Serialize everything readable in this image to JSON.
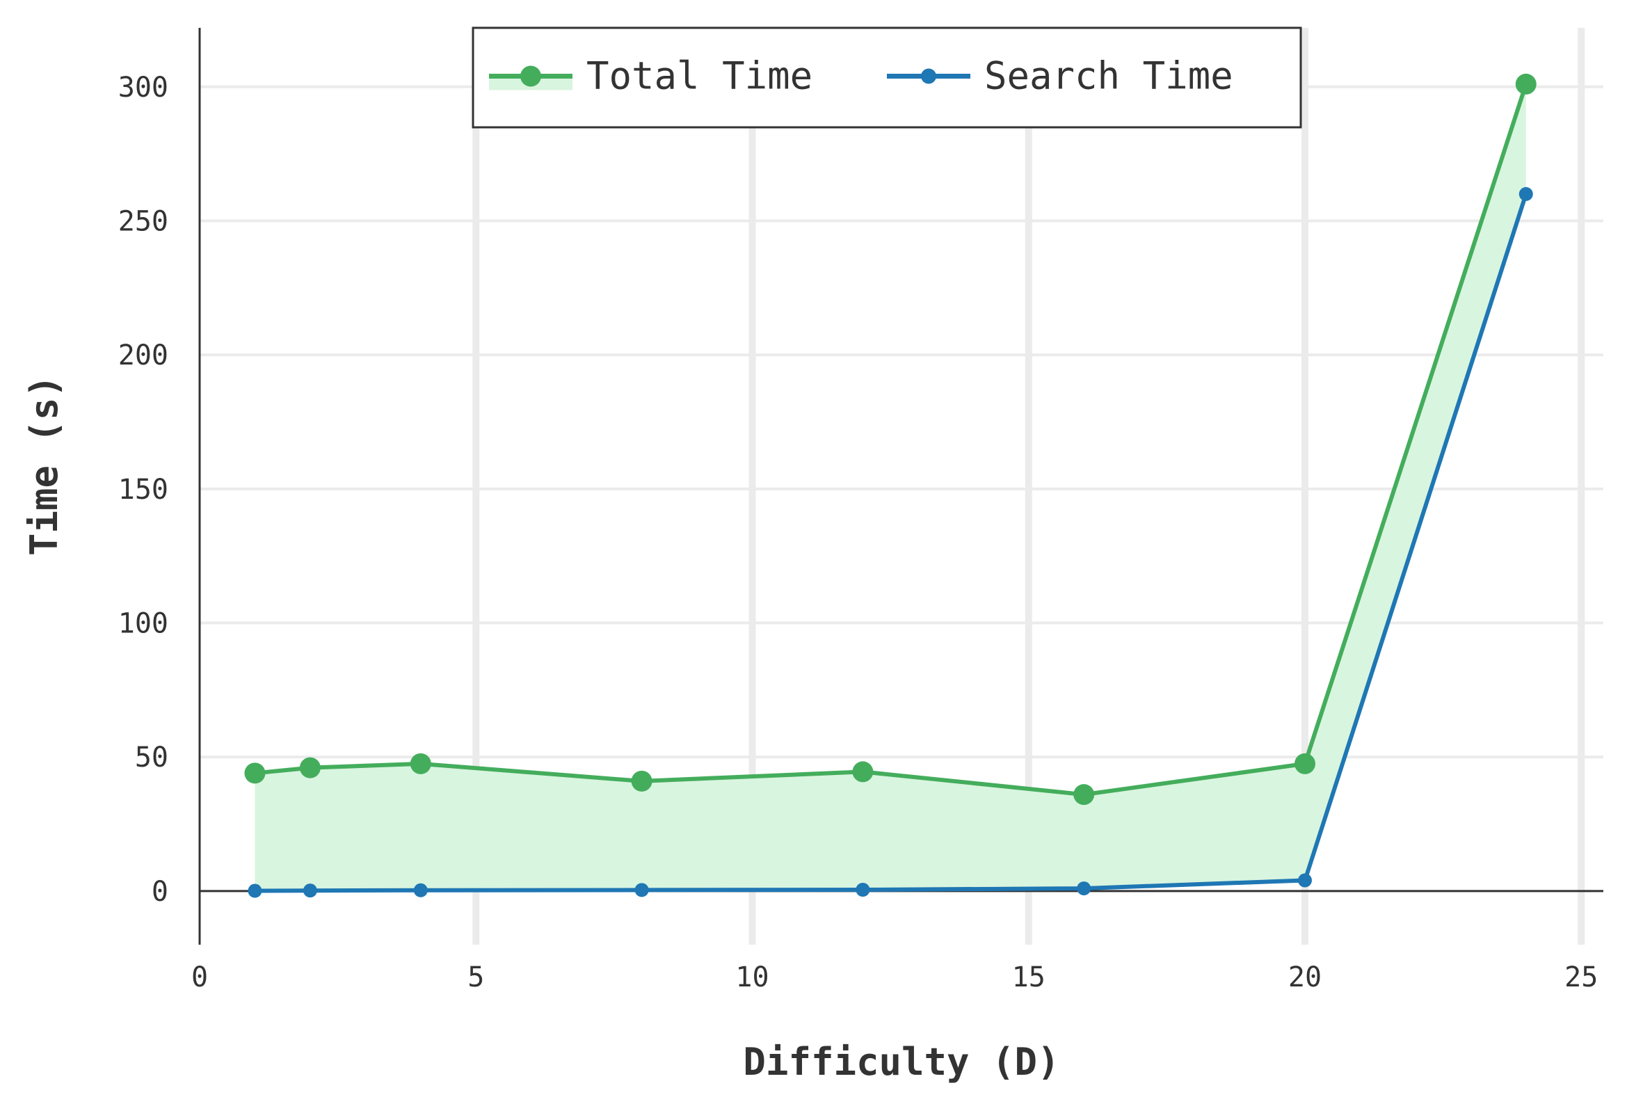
{
  "chart_data": {
    "type": "line",
    "title": "",
    "xlabel": "Difficulty (D)",
    "ylabel": "Time (s)",
    "xlim": [
      0,
      25.4
    ],
    "ylim": [
      -20,
      322
    ],
    "xticks": [
      0,
      5,
      10,
      15,
      20,
      25
    ],
    "yticks": [
      0,
      50,
      100,
      150,
      200,
      250,
      300
    ],
    "grid": true,
    "legend_position": "top-center",
    "x": [
      1,
      2,
      4,
      8,
      12,
      16,
      20,
      24
    ],
    "series": [
      {
        "name": "Total Time",
        "values": [
          44,
          46,
          47.5,
          41,
          44.5,
          36,
          47.5,
          301
        ],
        "color": "#44ad5c",
        "fill": "#d8f5df",
        "fill_to": "Search Time"
      },
      {
        "name": "Search Time",
        "values": [
          0.1,
          0.2,
          0.3,
          0.4,
          0.5,
          1,
          4,
          260
        ],
        "color": "#1f77b4"
      }
    ]
  }
}
